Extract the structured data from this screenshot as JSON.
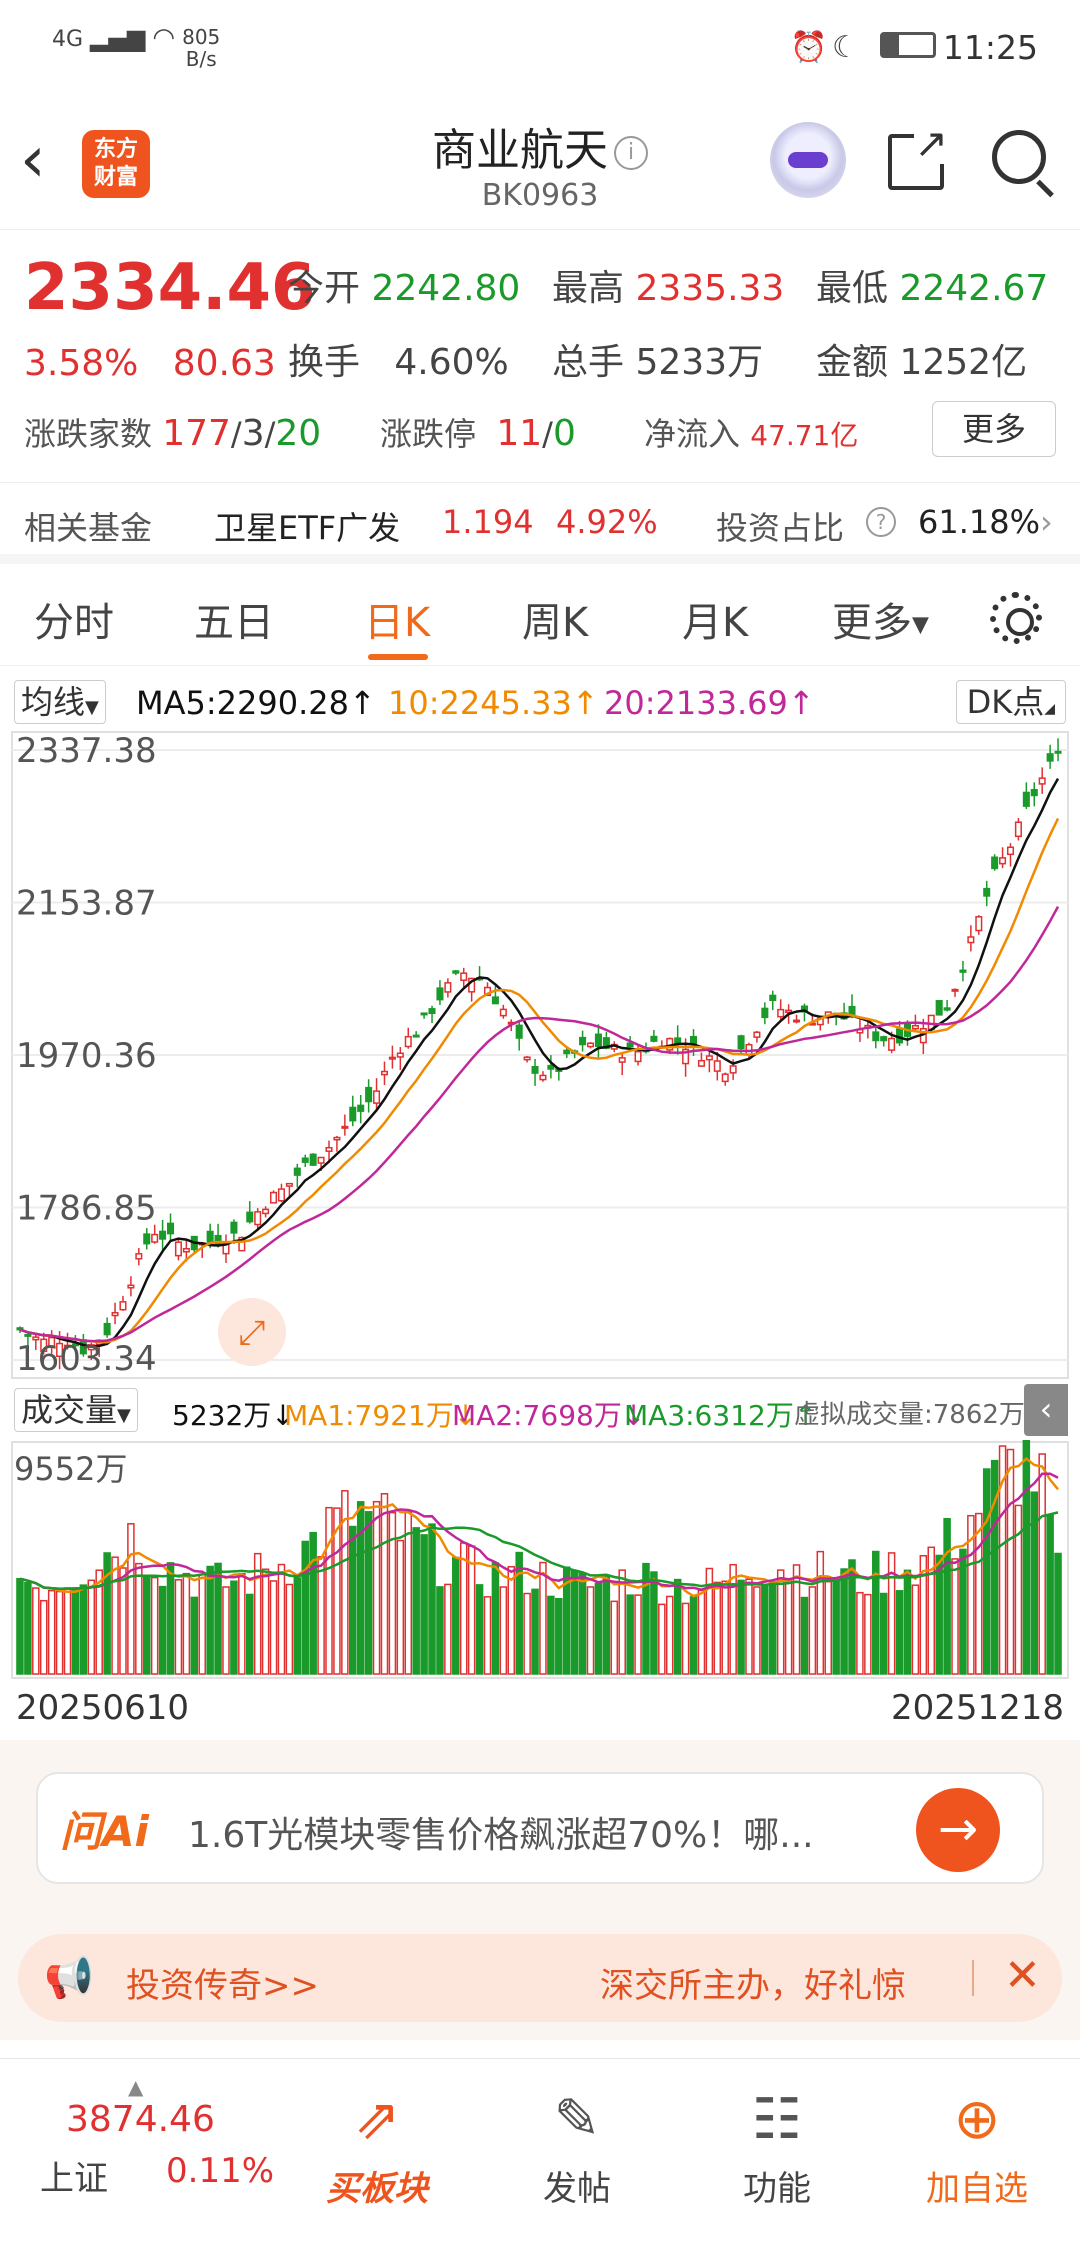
{
  "status_bar": {
    "network": "4G",
    "speed": "805",
    "speed_unit": "B/s",
    "time": "11:25"
  },
  "header": {
    "back_label": "‹",
    "logo_text_1": "东方",
    "logo_text_2": "财富",
    "title": "商业航天",
    "code": "BK0963"
  },
  "quote": {
    "price": "2334.46",
    "change_pct": "3.58%",
    "change": "80.63",
    "open_label": "今开",
    "open": "2242.80",
    "high_label": "最高",
    "high": "2335.33",
    "low_label": "最低",
    "low": "2242.67",
    "turnover_label": "换手",
    "turnover": "4.60%",
    "volume_label": "总手",
    "volume": "5233万",
    "amount_label": "金额",
    "amount": "1252亿",
    "advdec_label": "涨跌家数",
    "adv": "177",
    "flat": "3",
    "dec": "20",
    "limit_label": "涨跌停",
    "limit_up": "11",
    "limit_down": "0",
    "inflow_label": "净流入",
    "inflow": "47.71亿",
    "more_label": "更多"
  },
  "fund": {
    "label": "相关基金",
    "name": "卫星ETF广发",
    "price": "1.194",
    "pct": "4.92%",
    "ratio_label": "投资占比",
    "ratio": "61.18%"
  },
  "tabs": [
    "分时",
    "五日",
    "日K",
    "周K",
    "月K",
    "更多"
  ],
  "active_tab": 2,
  "ma_row": {
    "select": "均线",
    "ma5": "MA5:2290.28↑",
    "ma10": "10:2245.33↑",
    "ma20": "20:2133.69↑",
    "dk": "DK点"
  },
  "vol_row": {
    "select": "成交量",
    "vol": "5232万↓",
    "ma1": "MA1:7921万↓",
    "ma2": "MA2:7698万↓",
    "ma3": "MA3:6312万↑",
    "virtual": "虚拟成交量:7862万"
  },
  "chart_data": [
    {
      "type": "candlestick",
      "title": "",
      "y_ticks": [
        "2337.38",
        "2153.87",
        "1970.36",
        "1786.85",
        "1603.34"
      ],
      "ylim": [
        1603.34,
        2337.38
      ],
      "x_range": [
        "20250610",
        "20251218"
      ],
      "waypoints_close": [
        1640,
        1625,
        1630,
        1615,
        1640,
        1700,
        1760,
        1745,
        1740,
        1750,
        1755,
        1790,
        1810,
        1840,
        1860,
        1890,
        1920,
        1975,
        2000,
        2040,
        2070,
        2060,
        2020,
        1960,
        1945,
        1970,
        1985,
        1975,
        1975,
        1990,
        1985,
        1970,
        1955,
        1990,
        2030,
        2020,
        2015,
        2020,
        2005,
        1990,
        1995,
        2010,
        2030,
        2100,
        2180,
        2230,
        2290,
        2334
      ],
      "series": [
        {
          "name": "MA5",
          "color": "#111111"
        },
        {
          "name": "MA10",
          "color": "#f08a00"
        },
        {
          "name": "MA20",
          "color": "#c0289a"
        }
      ]
    },
    {
      "type": "bar",
      "title": "",
      "y_ticks": [
        "9552万"
      ],
      "waypoints": [
        4200,
        3800,
        4500,
        5200,
        6000,
        4800,
        4300,
        3900,
        4100,
        4600,
        5200,
        6300,
        7000,
        6500,
        5800,
        5000,
        4500,
        4200,
        4400,
        4100,
        3800,
        3900,
        4200,
        4000,
        3700,
        3900,
        4600,
        4800,
        4400,
        4300,
        4100,
        4500,
        4800,
        5500,
        7000,
        8600,
        9552,
        5232
      ]
    }
  ],
  "ai": {
    "logo": "问Ai",
    "text": "1.6T光模块零售价格飙涨超70%！哪...",
    "go": "→"
  },
  "promo": {
    "t1": "投资传奇>>",
    "t2": "深交所主办，好礼惊",
    "close": "✕"
  },
  "bottom": {
    "index_value": "3874.46",
    "index_name": "上证",
    "index_pct": "0.11%",
    "items": [
      {
        "icon": "⇗",
        "label": "买板块"
      },
      {
        "icon": "✎",
        "label": "发帖"
      },
      {
        "icon": "☷",
        "label": "功能"
      },
      {
        "icon": "⊕",
        "label": "加自选"
      }
    ]
  },
  "colors": {
    "up": "#e03030",
    "down": "#1a9a2a",
    "accent": "#f06a1a"
  }
}
